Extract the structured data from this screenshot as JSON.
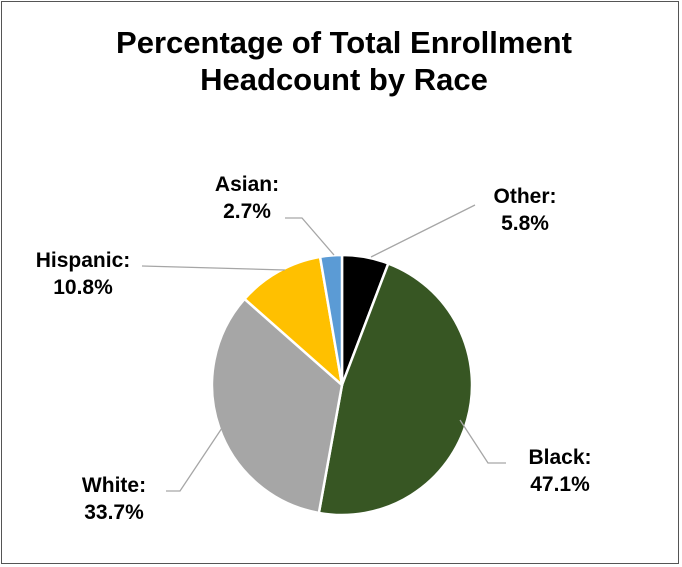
{
  "chart_data": {
    "type": "pie",
    "title": "Percentage of Total Enrollment Headcount by Race",
    "slices": [
      {
        "label": "Other:",
        "value": 5.8,
        "value_label": "5.8%",
        "color": "#000000"
      },
      {
        "label": "Black:",
        "value": 47.1,
        "value_label": "47.1%",
        "color": "#375623"
      },
      {
        "label": "White:",
        "value": 33.7,
        "value_label": "33.7%",
        "color": "#a6a6a6"
      },
      {
        "label": "Hispanic:",
        "value": 10.8,
        "value_label": "10.8%",
        "color": "#ffc000"
      },
      {
        "label": "Asian:",
        "value": 2.7,
        "value_label": "2.7%",
        "color": "#5b9bd5"
      }
    ],
    "start_angle": "12 o'clock",
    "direction": "clockwise",
    "legend": "none",
    "leader_line_color": "#a6a6a6"
  }
}
